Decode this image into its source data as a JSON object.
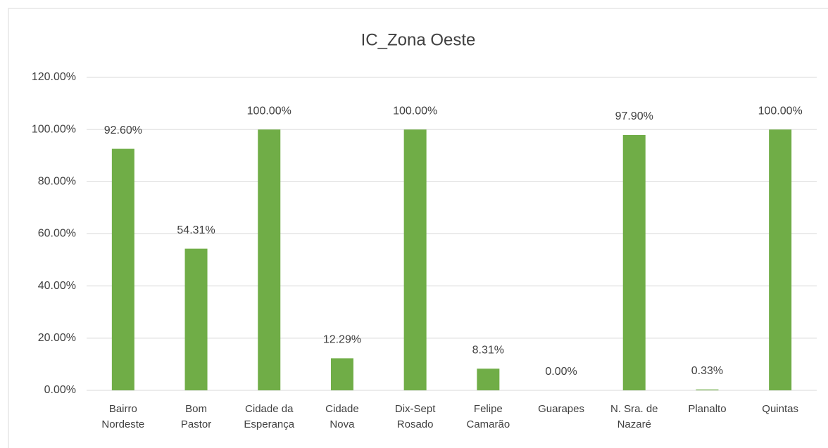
{
  "chart_data": {
    "type": "bar",
    "title": "IC_Zona Oeste",
    "categories": [
      "Bairro Nordeste",
      "Bom Pastor",
      "Cidade da Esperança",
      "Cidade Nova",
      "Dix-Sept Rosado",
      "Felipe Camarão",
      "Guarapes",
      "N. Sra. de Nazaré",
      "Planalto",
      "Quintas"
    ],
    "values": [
      92.6,
      54.31,
      100,
      12.29,
      100,
      8.31,
      0,
      97.9,
      0.33,
      100
    ],
    "value_labels": [
      "92.60%",
      "54.31%",
      "100.00%",
      "12.29%",
      "100.00%",
      "8.31%",
      "0.00%",
      "97.90%",
      "0.33%",
      "100.00%"
    ],
    "color": "#70ad47",
    "ylim": [
      0,
      120
    ],
    "yticks": [
      {
        "value": 0,
        "label": "0.00%"
      },
      {
        "value": 20,
        "label": "20.00%"
      },
      {
        "value": 40,
        "label": "40.00%"
      },
      {
        "value": 60,
        "label": "60.00%"
      },
      {
        "value": 80,
        "label": "80.00%"
      },
      {
        "value": 100,
        "label": "100.00%"
      },
      {
        "value": 120,
        "label": "120.00%"
      }
    ],
    "grid": true
  }
}
